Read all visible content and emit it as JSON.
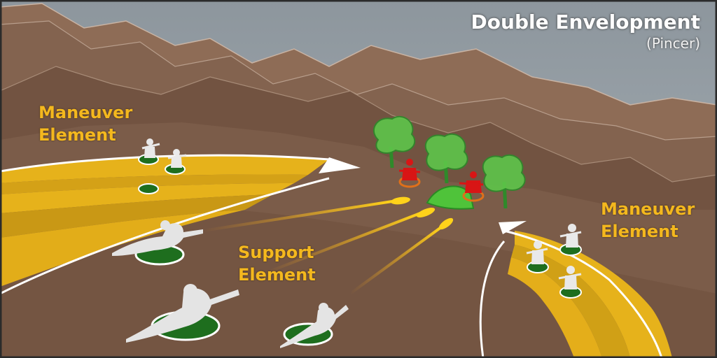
{
  "title": "Double Envelopment",
  "subtitle": "(Pincer)",
  "labels": {
    "maneuver_left_line1": "Maneuver",
    "maneuver_left_line2": "Element",
    "maneuver_right_line1": "Maneuver",
    "maneuver_right_line2": "Element",
    "support_line1": "Support",
    "support_line2": "Element"
  },
  "colors": {
    "sky": "#9aa4ab",
    "mountain_far": "#8c6b55",
    "mountain_mid": "#775845",
    "ground": "#7a5b48",
    "ground_dark": "#6a4c3b",
    "gold": "#e6b21b",
    "label": "#f4b81e",
    "friendly": "#e9e9e9",
    "friendly_base": "#1e6e1e",
    "enemy": "#d81515",
    "enemy_ring": "#e0701a",
    "tree": "#55c040",
    "tracer": "#f6a21a"
  },
  "icons": {
    "friendly_unit": "soldier-standing-icon",
    "friendly_prone": "soldier-prone-icon",
    "enemy_unit": "enemy-soldier-icon",
    "tree": "tree-icon",
    "bunker": "bunker-icon",
    "arrow": "arrowhead-icon",
    "tracer": "tracer-fire-icon"
  }
}
